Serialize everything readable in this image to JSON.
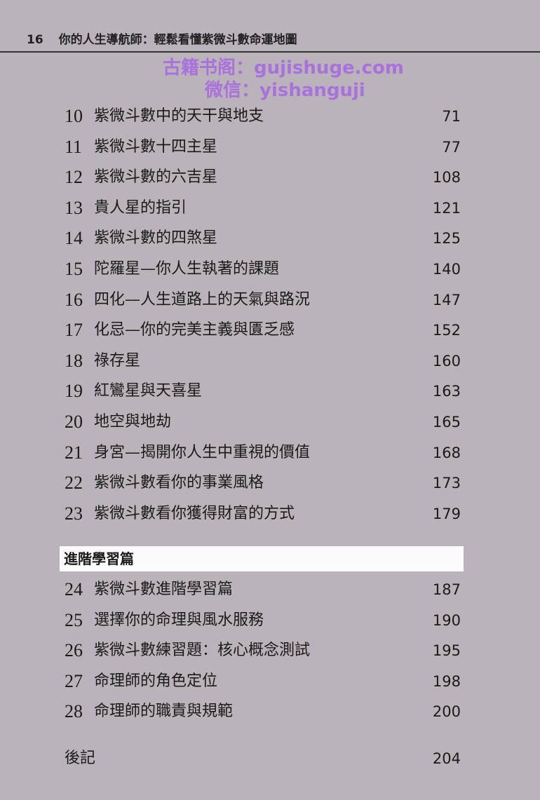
{
  "header": {
    "page_number": "16",
    "book_title": "你的人生導航師：輕鬆看懂紫微斗數命運地圖"
  },
  "entries_a": [
    {
      "num": "10",
      "title": "紫微斗數中的天干與地支",
      "page": "71"
    },
    {
      "num": "11",
      "title": "紫微斗數十四主星",
      "page": "77"
    },
    {
      "num": "12",
      "title": "紫微斗數的六吉星",
      "page": "108"
    },
    {
      "num": "13",
      "title": "貴人星的指引",
      "page": "121"
    },
    {
      "num": "14",
      "title": "紫微斗數的四煞星",
      "page": "125"
    },
    {
      "num": "15",
      "title": "陀羅星—你人生執著的課題",
      "page": "140"
    },
    {
      "num": "16",
      "title": "四化—人生道路上的天氣與路況",
      "page": "147"
    },
    {
      "num": "17",
      "title": "化忌—你的完美主義與匱乏感",
      "page": "152"
    },
    {
      "num": "18",
      "title": "祿存星",
      "page": "160"
    },
    {
      "num": "19",
      "title": "紅鸞星與天喜星",
      "page": "163"
    },
    {
      "num": "20",
      "title": "地空與地劫",
      "page": "165"
    },
    {
      "num": "21",
      "title": "身宮—揭開你人生中重視的價值",
      "page": "168"
    },
    {
      "num": "22",
      "title": "紫微斗數看你的事業風格",
      "page": "173"
    },
    {
      "num": "23",
      "title": "紫微斗數看你獲得財富的方式",
      "page": "179"
    }
  ],
  "section": {
    "title": "進階學習篇"
  },
  "entries_b": [
    {
      "num": "24",
      "title": "紫微斗數進階學習篇",
      "page": "187"
    },
    {
      "num": "25",
      "title": "選擇你的命理與風水服務",
      "page": "190"
    },
    {
      "num": "26",
      "title": "紫微斗數練習題：核心概念測試",
      "page": "195"
    },
    {
      "num": "27",
      "title": "命理師的角色定位",
      "page": "198"
    },
    {
      "num": "28",
      "title": "命理師的職責與規範",
      "page": "200"
    }
  ],
  "afterword": {
    "title": "後記",
    "page": "204"
  },
  "watermark": {
    "line1": "古籍书阁：gujishuge.com",
    "line2": "微信：yishanguji",
    "color": "#a86ae0"
  }
}
